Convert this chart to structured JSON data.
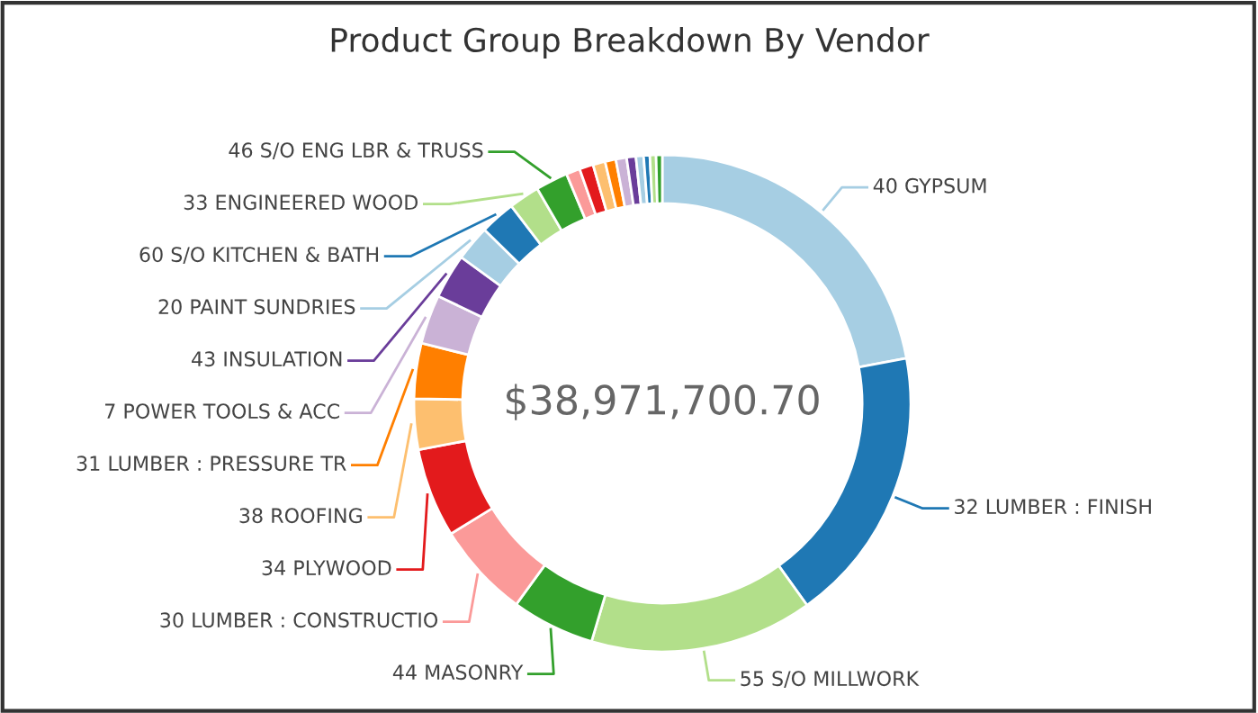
{
  "chart_data": {
    "type": "donut",
    "title": "Product Group Breakdown By Vendor",
    "categories": [
      "40 GYPSUM",
      "32 LUMBER : FINISH",
      "55 S/O MILLWORK",
      "44 MASONRY",
      "30 LUMBER : CONSTRUCTIO",
      "34 PLYWOOD",
      "38 ROOFING",
      "31 LUMBER : PRESSURE TR",
      "7 POWER TOOLS & ACC",
      "43 INSULATION",
      "20 PAINT SUNDRIES",
      "60 S/O KITCHEN & BATH",
      "33 ENGINEERED WOOD",
      "46 S/O ENG LBR & TRUSS",
      null,
      null,
      null,
      null,
      null,
      null,
      null,
      null,
      null,
      null
    ],
    "values": [
      22.1,
      18.0,
      14.5,
      5.4,
      6.2,
      5.8,
      3.3,
      3.6,
      3.2,
      2.9,
      2.3,
      2.3,
      2.0,
      2.1,
      0.9,
      0.9,
      0.8,
      0.7,
      0.7,
      0.6,
      0.5,
      0.4,
      0.4,
      0.4
    ],
    "colors": [
      "#a6cee3",
      "#1f78b4",
      "#b2df8a",
      "#33a02c",
      "#fb9a99",
      "#e31a1c",
      "#fdbf6f",
      "#ff7f00",
      "#cab2d6",
      "#6a3d9a",
      "#a6cee3",
      "#1f78b4",
      "#b2df8a",
      "#33a02c",
      "#fb9a99",
      "#e31a1c",
      "#fdbf6f",
      "#ff7f00",
      "#cab2d6",
      "#6a3d9a",
      "#a6cee3",
      "#1f78b4",
      "#b2df8a",
      "#33a02c"
    ],
    "annotations": [
      "$38,971,700.70"
    ]
  }
}
